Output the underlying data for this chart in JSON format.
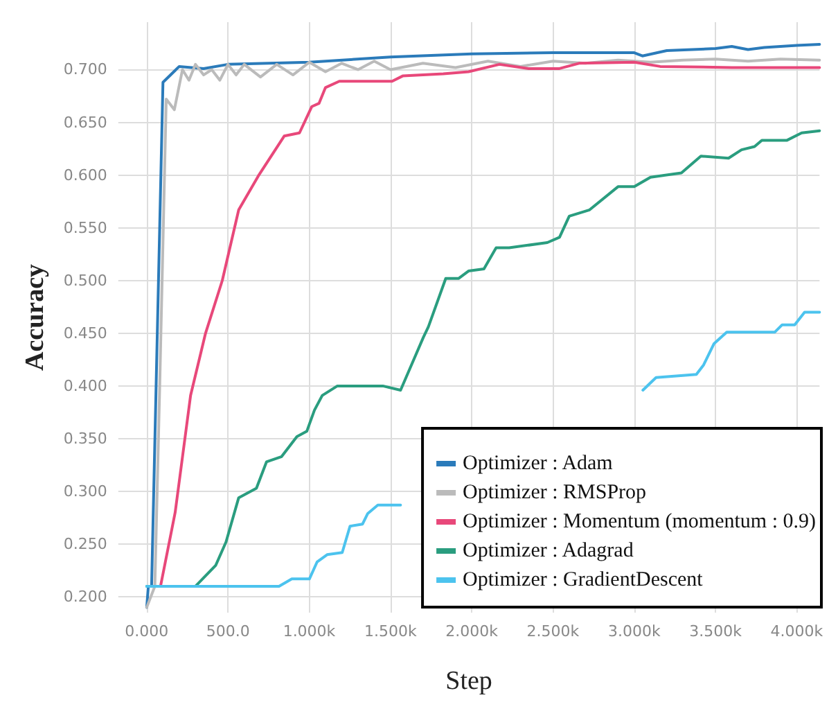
{
  "chart_data": {
    "type": "line",
    "xlabel": "Step",
    "ylabel": "Accuracy",
    "xlim": [
      -175,
      4140
    ],
    "ylim": [
      0.185,
      0.745
    ],
    "xticks": [
      {
        "value": 0,
        "label": "0.000"
      },
      {
        "value": 500,
        "label": "500.0"
      },
      {
        "value": 1000,
        "label": "1.000k"
      },
      {
        "value": 1500,
        "label": "1.500k"
      },
      {
        "value": 2000,
        "label": "2.000k"
      },
      {
        "value": 2500,
        "label": "2.500k"
      },
      {
        "value": 3000,
        "label": "3.000k"
      },
      {
        "value": 3500,
        "label": "3.500k"
      },
      {
        "value": 4000,
        "label": "4.000k"
      }
    ],
    "yticks": [
      {
        "value": 0.2,
        "label": "0.200"
      },
      {
        "value": 0.25,
        "label": "0.250"
      },
      {
        "value": 0.3,
        "label": "0.300"
      },
      {
        "value": 0.35,
        "label": "0.350"
      },
      {
        "value": 0.4,
        "label": "0.400"
      },
      {
        "value": 0.45,
        "label": "0.450"
      },
      {
        "value": 0.5,
        "label": "0.500"
      },
      {
        "value": 0.55,
        "label": "0.550"
      },
      {
        "value": 0.6,
        "label": "0.600"
      },
      {
        "value": 0.65,
        "label": "0.650"
      },
      {
        "value": 0.7,
        "label": "0.700"
      }
    ],
    "grid": true,
    "legend": "bottom right",
    "series": [
      {
        "name": "Optimizer : Adam",
        "color": "#2b7bba",
        "x": [
          0,
          10,
          30,
          100,
          200,
          350,
          500,
          1000,
          1500,
          2000,
          2500,
          3000,
          3050,
          3200,
          3500,
          3600,
          3700,
          3800,
          4000,
          4140
        ],
        "values": [
          0.19,
          0.21,
          0.21,
          0.688,
          0.703,
          0.701,
          0.705,
          0.707,
          0.712,
          0.715,
          0.716,
          0.716,
          0.713,
          0.718,
          0.72,
          0.722,
          0.719,
          0.721,
          0.723,
          0.724
        ]
      },
      {
        "name": "Optimizer : RMSProp",
        "color": "#bbbbbb",
        "x": [
          0,
          50,
          80,
          120,
          170,
          220,
          260,
          300,
          350,
          400,
          450,
          500,
          550,
          600,
          700,
          800,
          900,
          1000,
          1100,
          1200,
          1300,
          1400,
          1500,
          1700,
          1900,
          2100,
          2300,
          2500,
          2700,
          2900,
          3100,
          3300,
          3500,
          3700,
          3900,
          4140
        ],
        "values": [
          0.19,
          0.21,
          0.4,
          0.672,
          0.662,
          0.7,
          0.69,
          0.705,
          0.695,
          0.7,
          0.69,
          0.705,
          0.695,
          0.705,
          0.693,
          0.705,
          0.695,
          0.707,
          0.698,
          0.706,
          0.7,
          0.708,
          0.7,
          0.706,
          0.702,
          0.708,
          0.703,
          0.708,
          0.706,
          0.709,
          0.707,
          0.709,
          0.71,
          0.708,
          0.71,
          0.709
        ]
      },
      {
        "name": "Optimizer : Momentum (momentum : 0.9)",
        "color": "#e8487a",
        "x": [
          85,
          175,
          270,
          362,
          465,
          566,
          690,
          846,
          940,
          1016,
          1060,
          1100,
          1185,
          1510,
          1575,
          1825,
          1980,
          2170,
          2350,
          2540,
          2660,
          3000,
          3160,
          3600,
          4140
        ],
        "values": [
          0.21,
          0.28,
          0.391,
          0.45,
          0.5,
          0.567,
          0.6,
          0.637,
          0.64,
          0.665,
          0.668,
          0.683,
          0.689,
          0.689,
          0.694,
          0.696,
          0.698,
          0.705,
          0.701,
          0.701,
          0.706,
          0.707,
          0.703,
          0.702,
          0.702
        ]
      },
      {
        "name": "Optimizer : Adagrad",
        "color": "#2a9d7f",
        "x": [
          0,
          300,
          425,
          488,
          566,
          675,
          737,
          830,
          924,
          985,
          1032,
          1080,
          1173,
          1453,
          1562,
          1702,
          1733,
          1840,
          1920,
          1980,
          2075,
          2150,
          2230,
          2465,
          2540,
          2600,
          2725,
          2900,
          3000,
          3100,
          3290,
          3410,
          3580,
          3660,
          3740,
          3785,
          3940,
          4030,
          4140
        ],
        "values": [
          0.21,
          0.21,
          0.23,
          0.252,
          0.294,
          0.303,
          0.328,
          0.333,
          0.352,
          0.357,
          0.377,
          0.391,
          0.4,
          0.4,
          0.396,
          0.446,
          0.456,
          0.502,
          0.502,
          0.509,
          0.511,
          0.531,
          0.531,
          0.536,
          0.541,
          0.561,
          0.567,
          0.589,
          0.589,
          0.598,
          0.602,
          0.618,
          0.616,
          0.624,
          0.627,
          0.633,
          0.633,
          0.64,
          0.642
        ]
      },
      {
        "name": "Optimizer : GradientDescent",
        "color": "#4cc3ee",
        "x": [
          0,
          814,
          893,
          1001,
          1048,
          1110,
          1203,
          1251,
          1328,
          1360,
          1422,
          1562,
          2300,
          3053,
          3134,
          3382,
          3427,
          3490,
          3569,
          3864,
          3910,
          3987,
          4048,
          4140
        ],
        "values": [
          0.21,
          0.21,
          0.217,
          0.217,
          0.233,
          0.24,
          0.242,
          0.267,
          0.269,
          0.279,
          0.287,
          0.287,
          null,
          0.396,
          0.408,
          0.411,
          0.42,
          0.44,
          0.451,
          0.451,
          0.458,
          0.458,
          0.47,
          0.47
        ]
      }
    ]
  }
}
